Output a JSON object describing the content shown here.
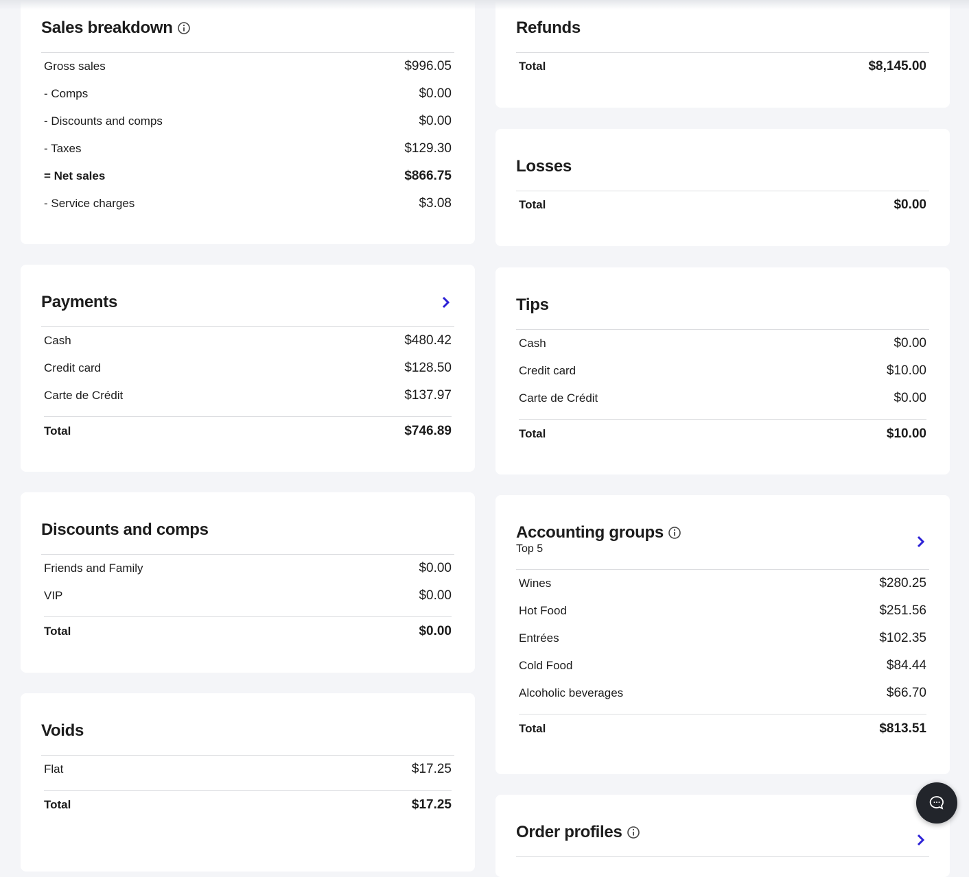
{
  "left": [
    {
      "title": "Sales breakdown",
      "rows": [
        [
          "Gross sales",
          "$996.05"
        ],
        [
          "- Comps",
          "$0.00"
        ],
        [
          "- Discounts and comps",
          "$0.00"
        ],
        [
          "- Taxes",
          "$129.30"
        ],
        [
          "= Net sales",
          "$866.75"
        ],
        [
          "- Service charges",
          "$3.08"
        ]
      ]
    },
    {
      "title": "Payments",
      "rows": [
        [
          "Cash",
          "$480.42"
        ],
        [
          "Credit card",
          "$128.50"
        ],
        [
          "Carte de Crédit",
          "$137.97"
        ]
      ],
      "total": [
        "Total",
        "$746.89"
      ]
    },
    {
      "title": "Discounts and comps",
      "rows": [
        [
          "Friends and Family",
          "$0.00"
        ],
        [
          "VIP",
          "$0.00"
        ]
      ],
      "total": [
        "Total",
        "$0.00"
      ]
    },
    {
      "title": "Voids",
      "rows": [
        [
          "Flat",
          "$17.25"
        ]
      ],
      "total": [
        "Total",
        "$17.25"
      ]
    }
  ],
  "right": [
    {
      "title": "Refunds",
      "total": [
        "Total",
        "$8,145.00"
      ]
    },
    {
      "title": "Losses",
      "total": [
        "Total",
        "$0.00"
      ]
    },
    {
      "title": "Tips",
      "rows": [
        [
          "Cash",
          "$0.00"
        ],
        [
          "Credit card",
          "$10.00"
        ],
        [
          "Carte de Crédit",
          "$0.00"
        ]
      ],
      "total": [
        "Total",
        "$10.00"
      ]
    },
    {
      "title": "Accounting groups",
      "subtitle": "Top 5",
      "rows": [
        [
          "Wines",
          "$280.25"
        ],
        [
          "Hot Food",
          "$251.56"
        ],
        [
          "Entrées",
          "$102.35"
        ],
        [
          "Cold Food",
          "$84.44"
        ],
        [
          "Alcoholic beverages",
          "$66.70"
        ]
      ],
      "total": [
        "Total",
        "$813.51"
      ]
    },
    {
      "title": "Order profiles"
    }
  ]
}
